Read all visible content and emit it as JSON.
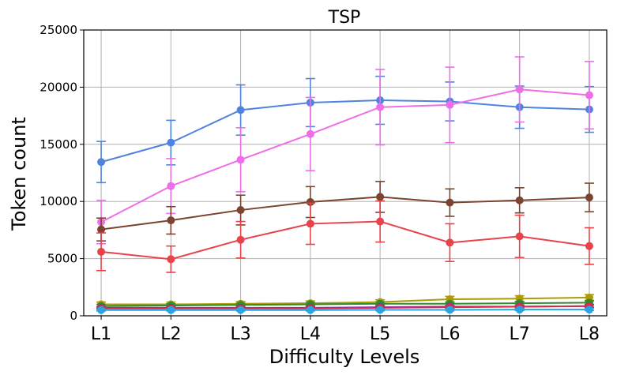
{
  "chart_data": {
    "type": "line",
    "title": "TSP",
    "xlabel": "Difficulty Levels",
    "ylabel": "Token count",
    "categories": [
      "L1",
      "L2",
      "L3",
      "L4",
      "L5",
      "L6",
      "L7",
      "L8"
    ],
    "ylim": [
      0,
      25000
    ],
    "yticks": [
      0,
      5000,
      10000,
      15000,
      20000,
      25000
    ],
    "grid": true,
    "series": [
      {
        "name": "blue",
        "color": "#4f83e0",
        "values": [
          13450,
          15150,
          18000,
          18650,
          18850,
          18750,
          18250,
          18050
        ],
        "errors": [
          1800,
          1950,
          2200,
          2100,
          2100,
          1700,
          1850,
          2000
        ]
      },
      {
        "name": "violet",
        "color": "#ee6ee8",
        "values": [
          8200,
          11350,
          13650,
          15900,
          18250,
          18450,
          19800,
          19300
        ],
        "errors": [
          1900,
          2400,
          2800,
          3200,
          3300,
          3300,
          2850,
          2950
        ]
      },
      {
        "name": "brown",
        "color": "#7b4430",
        "values": [
          7550,
          8350,
          9250,
          9950,
          10400,
          9900,
          10100,
          10350
        ],
        "errors": [
          1000,
          1200,
          1300,
          1350,
          1350,
          1200,
          1100,
          1250
        ]
      },
      {
        "name": "red",
        "color": "#e8434b",
        "values": [
          5600,
          4950,
          6650,
          8050,
          8250,
          6400,
          6950,
          6100
        ],
        "errors": [
          1650,
          1150,
          1600,
          1800,
          1800,
          1650,
          1850,
          1600
        ]
      },
      {
        "name": "olive",
        "color": "#b09a00",
        "values": [
          1000,
          1000,
          1050,
          1100,
          1200,
          1450,
          1500,
          1600
        ],
        "errors": [
          200,
          200,
          200,
          200,
          200,
          250,
          250,
          250
        ]
      },
      {
        "name": "green",
        "color": "#2e8b2e",
        "values": [
          850,
          900,
          950,
          1000,
          1050,
          1050,
          1100,
          1150
        ],
        "errors": [
          150,
          150,
          150,
          150,
          150,
          150,
          150,
          150
        ]
      },
      {
        "name": "purple",
        "color": "#8a2bb8",
        "values": [
          700,
          700,
          700,
          700,
          750,
          800,
          800,
          850
        ],
        "errors": [
          100,
          100,
          100,
          100,
          100,
          100,
          100,
          100
        ]
      },
      {
        "name": "crimson",
        "color": "#d02e4e",
        "values": [
          650,
          650,
          650,
          650,
          700,
          750,
          800,
          850
        ],
        "errors": [
          100,
          100,
          100,
          100,
          100,
          100,
          100,
          100
        ]
      },
      {
        "name": "cyan",
        "color": "#2aa4e0",
        "values": [
          500,
          500,
          500,
          500,
          520,
          520,
          540,
          540
        ],
        "errors": [
          80,
          80,
          80,
          80,
          80,
          80,
          80,
          80
        ]
      }
    ]
  }
}
